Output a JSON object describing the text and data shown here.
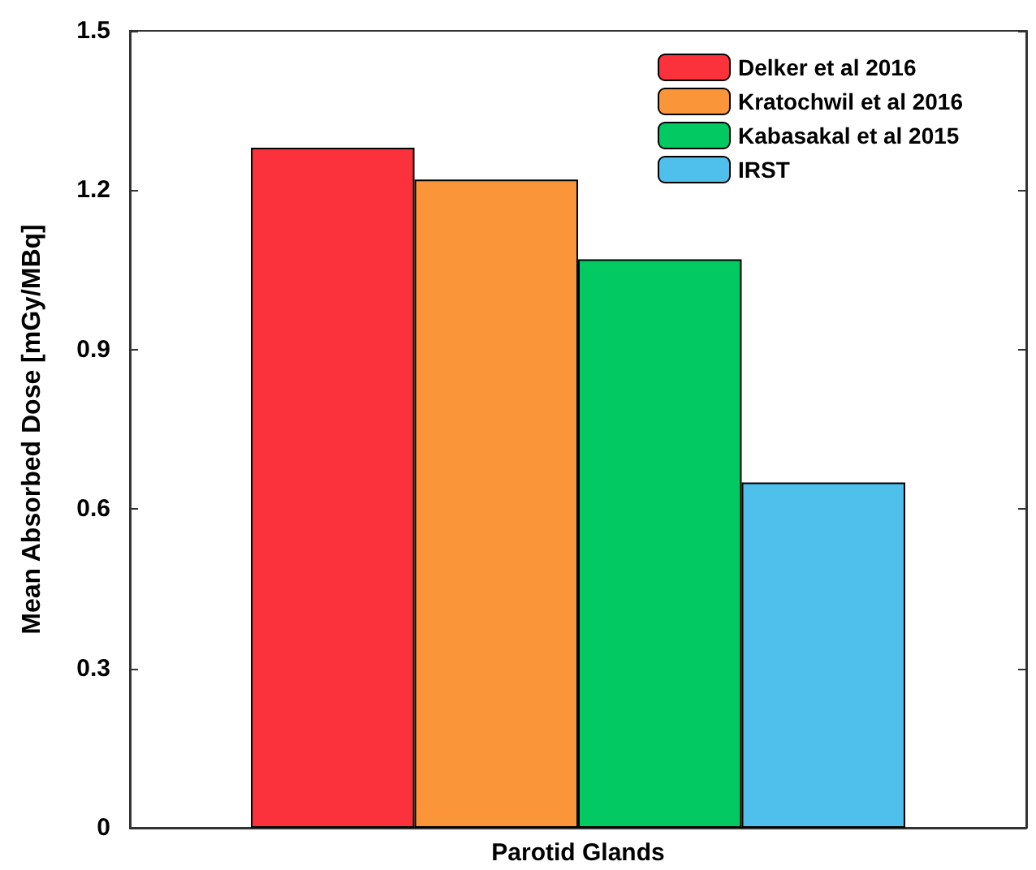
{
  "chart_data": {
    "type": "bar",
    "categories": [
      "Parotid Glands"
    ],
    "ylabel": "Mean Absorbed Dose [mGy/MBq]",
    "series": [
      {
        "name": "Delker et al 2016",
        "color": "#fb323c",
        "values": [
          1.28
        ]
      },
      {
        "name": "Kratochwil et al 2016",
        "color": "#fb953a",
        "values": [
          1.22
        ]
      },
      {
        "name": "Kabasakal et al 2015",
        "color": "#03c962",
        "values": [
          1.07
        ]
      },
      {
        "name": "IRST",
        "color": "#4fbfec",
        "values": [
          0.65
        ]
      }
    ],
    "ylim": [
      0,
      1.5
    ],
    "yticks": [
      0,
      0.3,
      0.6,
      0.9,
      1.2,
      1.5
    ],
    "grid": false,
    "legend": "top right"
  }
}
